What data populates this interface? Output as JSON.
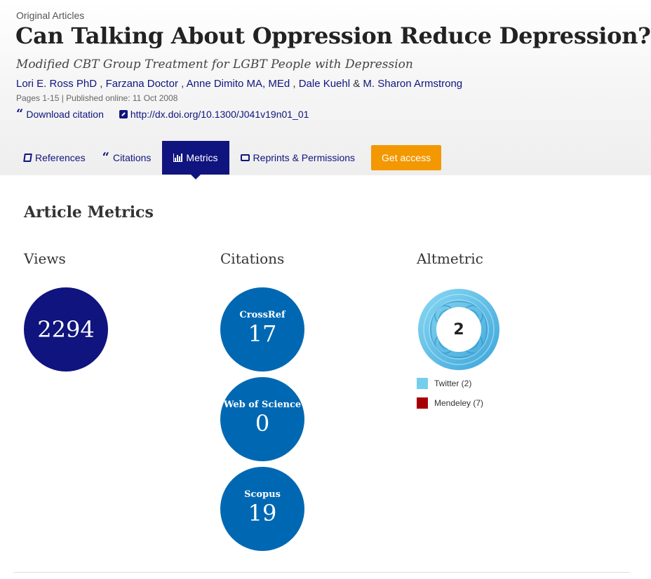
{
  "article": {
    "section": "Original Articles",
    "title": "Can Talking About Oppression Reduce Depression?",
    "subtitle": "Modified CBT Group Treatment for LGBT People with Depression",
    "authors": [
      "Lori E. Ross PhD",
      "Farzana Doctor",
      "Anne Dimito MA, MEd",
      "Dale Kuehl",
      "M. Sharon Armstrong"
    ],
    "author_separators": [
      " , ",
      " , ",
      " , ",
      " & "
    ],
    "pub_info": "Pages 1-15 | Published online: 11 Oct 2008",
    "download_citation": "Download citation",
    "doi": "http://dx.doi.org/10.1300/J041v19n01_01"
  },
  "tabs": [
    {
      "label": "References",
      "icon": "book-icon"
    },
    {
      "label": "Citations",
      "icon": "quote-icon"
    },
    {
      "label": "Metrics",
      "icon": "bar-chart-icon",
      "active": true
    },
    {
      "label": "Reprints & Permissions",
      "icon": "print-icon"
    }
  ],
  "get_access": "Get access",
  "metrics": {
    "heading": "Article Metrics",
    "views_heading": "Views",
    "views": "2294",
    "citations_heading": "Citations",
    "citations": [
      {
        "source": "CrossRef",
        "count": "17"
      },
      {
        "source": "Web of Science",
        "count": "0"
      },
      {
        "source": "Scopus",
        "count": "19"
      }
    ],
    "altmetric_heading": "Altmetric",
    "altmetric_score": "2",
    "altmetric_legend": [
      {
        "label": "Twitter (2)",
        "color": "#74cfed"
      },
      {
        "label": "Mendeley (7)",
        "color": "#a60000"
      }
    ]
  },
  "colors": {
    "navy": "#10147e",
    "citation_blue": "#0068b3",
    "access_orange": "#f39800",
    "altmetric_blue": "#5bc0eb"
  }
}
